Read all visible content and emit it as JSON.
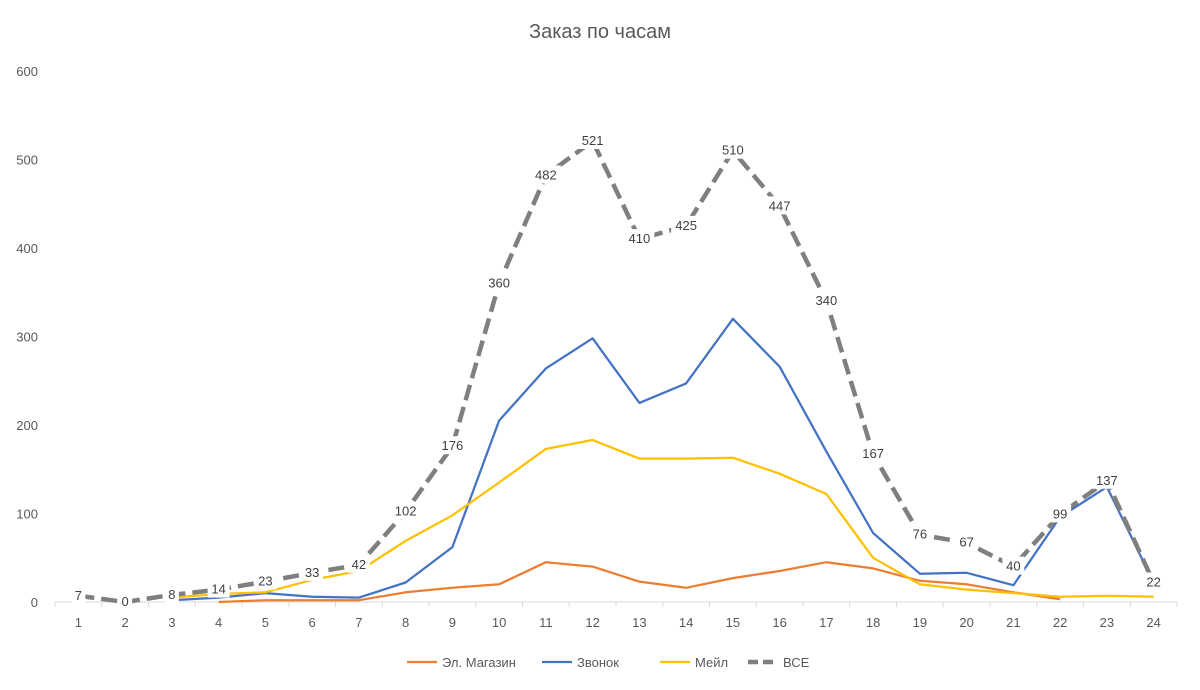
{
  "chart_data": {
    "type": "line",
    "title": "Заказ по часам",
    "xlabel": "",
    "ylabel": "",
    "ylim": [
      0,
      600
    ],
    "yticks": [
      0,
      100,
      200,
      300,
      400,
      500,
      600
    ],
    "categories": [
      "1",
      "2",
      "3",
      "4",
      "5",
      "6",
      "7",
      "8",
      "9",
      "10",
      "11",
      "12",
      "13",
      "14",
      "15",
      "16",
      "17",
      "18",
      "19",
      "20",
      "21",
      "22",
      "23",
      "24"
    ],
    "grid": false,
    "legend_position": "bottom",
    "series": [
      {
        "name": "Эл. Магазин",
        "color": "#ED7D31",
        "dashed": false,
        "values": [
          null,
          null,
          null,
          0,
          2,
          2,
          2,
          11,
          16,
          20,
          45,
          40,
          23,
          16,
          27,
          35,
          45,
          38,
          24,
          20,
          11,
          3,
          null,
          null
        ]
      },
      {
        "name": "Звонок",
        "color": "#4472C4",
        "dashed": false,
        "values": [
          null,
          null,
          2,
          5,
          10,
          6,
          5,
          22,
          62,
          205,
          264,
          298,
          225,
          247,
          320,
          266,
          170,
          78,
          32,
          33,
          19,
          96,
          130,
          22
        ]
      },
      {
        "name": "Мейл",
        "color": "#FFC000",
        "dashed": false,
        "values": [
          null,
          null,
          5,
          9,
          11,
          25,
          35,
          69,
          98,
          135,
          173,
          183,
          162,
          162,
          163,
          145,
          122,
          50,
          20,
          14,
          10,
          6,
          7,
          6
        ]
      },
      {
        "name": "ВСЕ",
        "color": "#7F7F7F",
        "dashed": true,
        "values": [
          7,
          0,
          8,
          14,
          23,
          33,
          42,
          102,
          176,
          360,
          482,
          521,
          410,
          425,
          510,
          447,
          340,
          167,
          76,
          67,
          40,
          99,
          137,
          22
        ],
        "labels": [
          "7",
          "0",
          "8",
          "14",
          "23",
          "33",
          "42",
          "102",
          "176",
          "360",
          "482",
          "521",
          "410",
          "425",
          "510",
          "447",
          "340",
          "167",
          "76",
          "67",
          "40",
          "99",
          "137",
          "22"
        ]
      }
    ]
  }
}
